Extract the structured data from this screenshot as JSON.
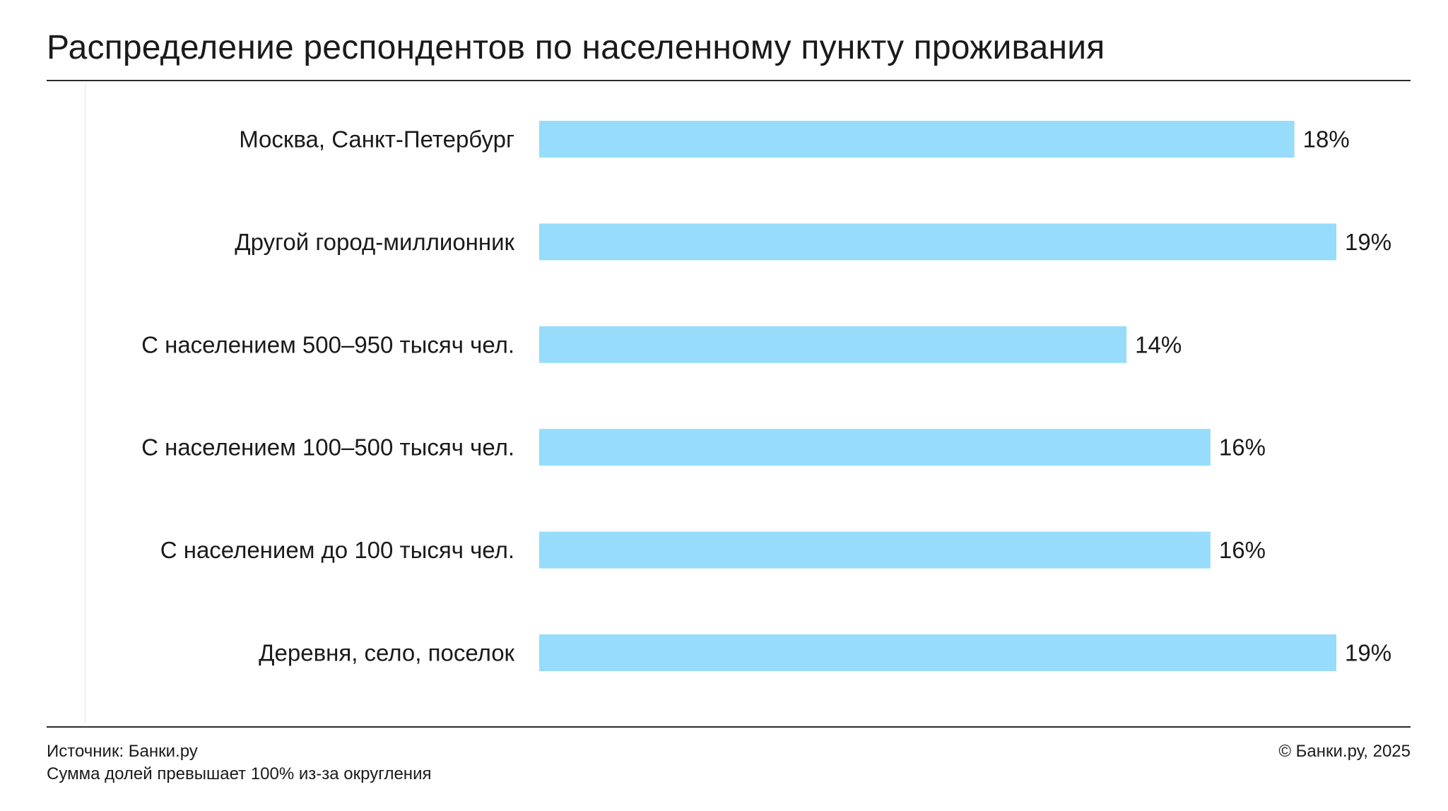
{
  "header": {
    "title": "Распределение респондентов по населенному пункту проживания"
  },
  "footer": {
    "source": "Источник: Банки.ру",
    "note": "Сумма долей превышает 100% из-за округления",
    "copyright": "© Банки.ру, 2025"
  },
  "colors": {
    "bar": "#97dcfb",
    "rule": "#2a2a2a",
    "text": "#1a1a1a"
  },
  "chart_data": {
    "type": "bar",
    "orientation": "horizontal",
    "categories": [
      "Москва, Санкт-Петербург",
      "Другой город-миллионник",
      "С населением 500–950 тысяч чел.",
      "С населением 100–500 тысяч чел.",
      "С населением до 100 тысяч чел.",
      "Деревня, село, поселок"
    ],
    "values": [
      18,
      19,
      14,
      16,
      16,
      19
    ],
    "value_labels": [
      "18%",
      "19%",
      "14%",
      "16%",
      "16%",
      "19%"
    ],
    "unit": "%",
    "xlim": [
      0,
      19
    ],
    "grid": false,
    "legend": "none"
  }
}
